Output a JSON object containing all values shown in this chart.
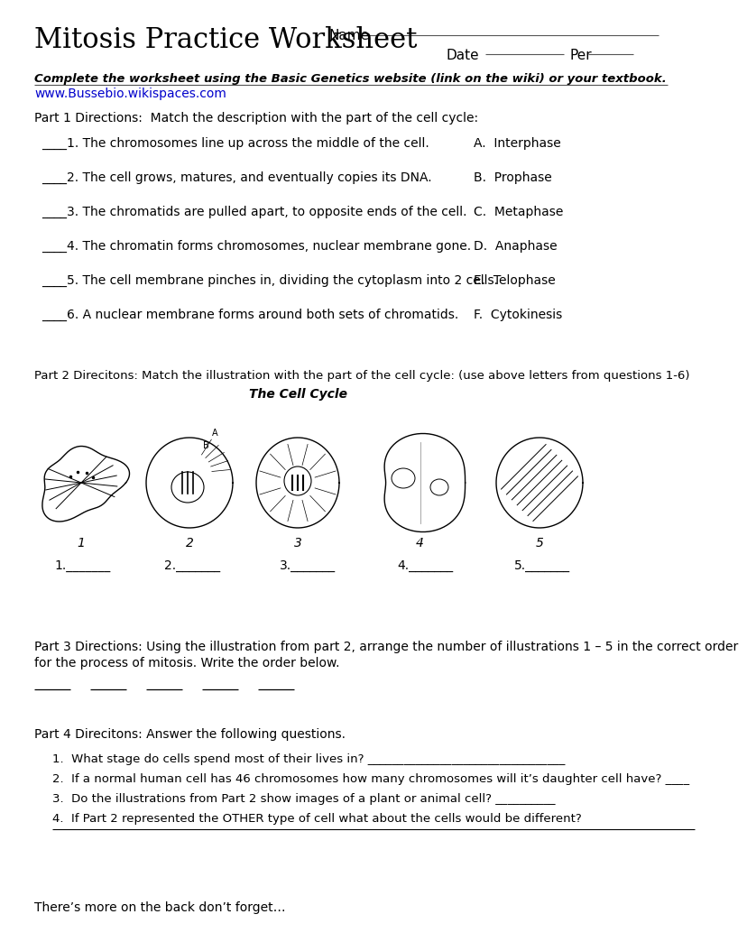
{
  "title": "Mitosis Practice Worksheet",
  "name_label": "Name",
  "date_label": "Date",
  "per_label": "Per",
  "instruction_bold_italic": "Complete the worksheet using the Basic Genetics website (link on the wiki) or your textbook.",
  "url": "www.Bussebio.wikispaces.com",
  "part1_header": "Part 1 Directions:  Match the description with the part of the cell cycle:",
  "part1_questions": [
    "____1. The chromosomes line up across the middle of the cell.",
    "____2. The cell grows, matures, and eventually copies its DNA.",
    "____3. The chromatids are pulled apart, to opposite ends of the cell.",
    "____4. The chromatin forms chromosomes, nuclear membrane gone.",
    "____5. The cell membrane pinches in, dividing the cytoplasm into 2 cells.",
    "____6. A nuclear membrane forms around both sets of chromatids."
  ],
  "part1_answers": [
    "A.  Interphase",
    "B.  Prophase",
    "C.  Metaphase",
    "D.  Anaphase",
    "E.  Telophase",
    "F.  Cytokinesis"
  ],
  "part2_header": "Part 2 Direcitons: Match the illustration with the part of the cell cycle: (use above letters from questions 1-6)",
  "part2_subtitle": "The Cell Cycle",
  "part2_blanks_labels": [
    "1.",
    "2.",
    "3.",
    "4.",
    "5."
  ],
  "part3_line1": "Part 3 Directions: Using the illustration from part 2, arrange the number of illustrations 1 – 5 in the correct order",
  "part3_line2": "for the process of mitosis. Write the order below.",
  "part4_header": "Part 4 Direcitons: Answer the following questions.",
  "part4_q1": "What stage do cells spend most of their lives in? _________________________________",
  "part4_q2": "If a normal human cell has 46 chromosomes how many chromosomes will it’s daughter cell have? ____",
  "part4_q3": "Do the illustrations from Part 2 show images of a plant or animal cell? __________",
  "part4_q4": "If Part 2 represented the OTHER type of cell what about the cells would be different?",
  "part4_q4_line": "___________________________________________________________________________________________",
  "footer": "There’s more on the back don’t forget…",
  "bg_color": "#ffffff",
  "text_color": "#000000",
  "url_color": "#0000cc"
}
